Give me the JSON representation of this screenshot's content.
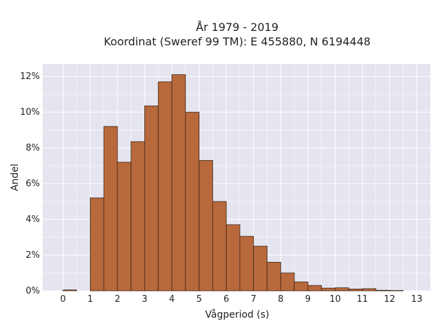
{
  "chart_data": {
    "type": "bar",
    "title_line1": "År 1979 - 2019",
    "title_line2": "Koordinat (Sweref 99 TM): E 455880, N 6194448",
    "xlabel": "Vågperiod (s)",
    "ylabel": "Andel",
    "xlim": [
      -0.75,
      13.5
    ],
    "ylim": [
      0,
      12.7
    ],
    "x_ticks": [
      0,
      1,
      2,
      3,
      4,
      5,
      6,
      7,
      8,
      9,
      10,
      11,
      12,
      13
    ],
    "y_ticks": [
      0,
      2,
      4,
      6,
      8,
      10,
      12
    ],
    "y_tick_labels": [
      "0%",
      "2%",
      "4%",
      "6%",
      "8%",
      "10%",
      "12%"
    ],
    "bin_width": 0.5,
    "bins": [
      {
        "start": 0.0,
        "value": 0.05
      },
      {
        "start": 1.0,
        "value": 5.2
      },
      {
        "start": 1.5,
        "value": 9.2
      },
      {
        "start": 2.0,
        "value": 7.2
      },
      {
        "start": 2.5,
        "value": 8.35
      },
      {
        "start": 3.0,
        "value": 10.35
      },
      {
        "start": 3.5,
        "value": 11.7
      },
      {
        "start": 4.0,
        "value": 12.1
      },
      {
        "start": 4.5,
        "value": 10.0
      },
      {
        "start": 5.0,
        "value": 7.3
      },
      {
        "start": 5.5,
        "value": 5.0
      },
      {
        "start": 6.0,
        "value": 3.7
      },
      {
        "start": 6.5,
        "value": 3.05
      },
      {
        "start": 7.0,
        "value": 2.5
      },
      {
        "start": 7.5,
        "value": 1.6
      },
      {
        "start": 8.0,
        "value": 1.0
      },
      {
        "start": 8.5,
        "value": 0.5
      },
      {
        "start": 9.0,
        "value": 0.3
      },
      {
        "start": 9.5,
        "value": 0.15
      },
      {
        "start": 10.0,
        "value": 0.17
      },
      {
        "start": 10.5,
        "value": 0.1
      },
      {
        "start": 11.0,
        "value": 0.12
      },
      {
        "start": 11.5,
        "value": 0.03
      },
      {
        "start": 12.0,
        "value": 0.02
      }
    ],
    "grid": true,
    "colors": {
      "bar_fill": "#b8693c",
      "bar_stroke": "#3a2416",
      "plot_background": "#e5e5ef",
      "grid": "#ffffff"
    }
  }
}
